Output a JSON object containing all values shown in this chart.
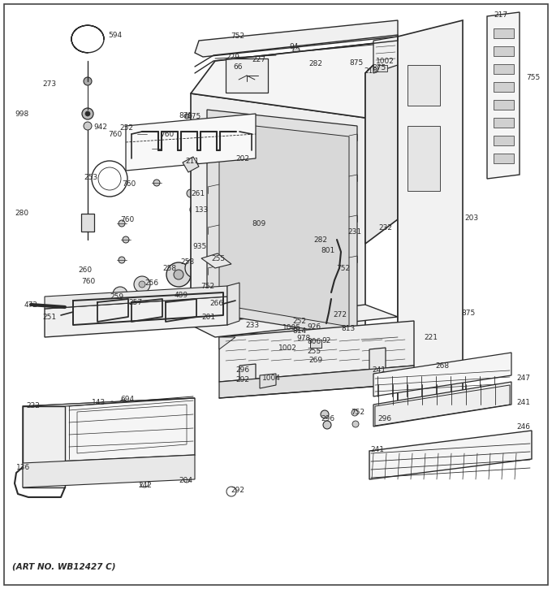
{
  "caption": "(ART NO. WB12427 C)",
  "bg_color": "#ffffff",
  "line_color": "#2a2a2a",
  "figsize": [
    6.8,
    7.25
  ],
  "dpi": 100
}
